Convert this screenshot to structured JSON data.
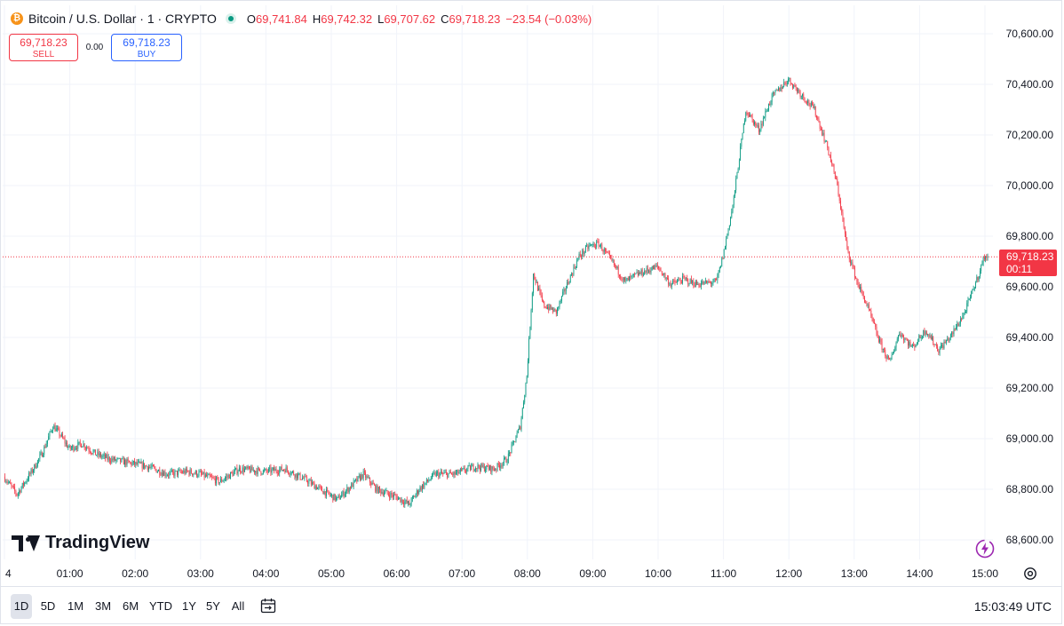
{
  "symbol": {
    "title": "Bitcoin / U.S. Dollar · 1 · CRYPTO",
    "icon": "bitcoin-icon",
    "ohlc": {
      "o_label": "O",
      "o": "69,741.84",
      "h_label": "H",
      "h": "69,742.32",
      "l_label": "L",
      "l": "69,707.62",
      "c_label": "C",
      "c": "69,718.23",
      "change": "−23.54 (−0.03%)"
    }
  },
  "trade": {
    "sell_price": "69,718.23",
    "sell_label": "SELL",
    "spread": "0.00",
    "buy_price": "69,718.23",
    "buy_label": "BUY"
  },
  "brand": "TradingView",
  "price_tag": {
    "price": "69,718.23",
    "countdown": "00:11"
  },
  "range_buttons": [
    "1D",
    "5D",
    "1M",
    "3M",
    "6M",
    "YTD",
    "1Y",
    "5Y",
    "All"
  ],
  "active_range": "1D",
  "clock": "15:03:49 UTC",
  "colors": {
    "up": "#089981",
    "down": "#f23645",
    "grid": "#f0f3fa",
    "last_price": "#f23645"
  },
  "chart_data": {
    "type": "candlestick",
    "y_ticks": [
      "70,600.00",
      "70,400.00",
      "70,200.00",
      "70,000.00",
      "69,800.00",
      "69,600.00",
      "69,400.00",
      "69,200.00",
      "69,000.00",
      "68,800.00",
      "68,600.00"
    ],
    "y_tick_values": [
      70600,
      70400,
      70200,
      70000,
      69800,
      69600,
      69400,
      69200,
      69000,
      68800,
      68600
    ],
    "x_ticks": [
      "4",
      "01:00",
      "02:00",
      "03:00",
      "04:00",
      "05:00",
      "06:00",
      "07:00",
      "08:00",
      "09:00",
      "10:00",
      "11:00",
      "12:00",
      "13:00",
      "14:00",
      "15:00"
    ],
    "x_tick_hours": [
      0,
      1,
      2,
      3,
      4,
      5,
      6,
      7,
      8,
      9,
      10,
      11,
      12,
      13,
      14,
      15
    ],
    "last_price": 69718.23,
    "price_path": [
      [
        0.0,
        68850
      ],
      [
        0.2,
        68780
      ],
      [
        0.45,
        68880
      ],
      [
        0.6,
        68950
      ],
      [
        0.75,
        69050
      ],
      [
        0.85,
        69020
      ],
      [
        1.0,
        68960
      ],
      [
        1.2,
        68980
      ],
      [
        1.4,
        68940
      ],
      [
        1.6,
        68920
      ],
      [
        1.8,
        68910
      ],
      [
        2.0,
        68900
      ],
      [
        2.2,
        68890
      ],
      [
        2.5,
        68860
      ],
      [
        2.8,
        68870
      ],
      [
        3.0,
        68860
      ],
      [
        3.3,
        68830
      ],
      [
        3.6,
        68880
      ],
      [
        4.0,
        68870
      ],
      [
        4.3,
        68880
      ],
      [
        4.6,
        68840
      ],
      [
        4.9,
        68790
      ],
      [
        5.1,
        68760
      ],
      [
        5.3,
        68810
      ],
      [
        5.5,
        68860
      ],
      [
        5.7,
        68800
      ],
      [
        6.0,
        68770
      ],
      [
        6.2,
        68740
      ],
      [
        6.35,
        68800
      ],
      [
        6.6,
        68860
      ],
      [
        6.9,
        68860
      ],
      [
        7.2,
        68890
      ],
      [
        7.5,
        68880
      ],
      [
        7.7,
        68920
      ],
      [
        7.9,
        69050
      ],
      [
        8.0,
        69250
      ],
      [
        8.1,
        69650
      ],
      [
        8.25,
        69530
      ],
      [
        8.45,
        69500
      ],
      [
        8.6,
        69600
      ],
      [
        8.8,
        69720
      ],
      [
        8.95,
        69760
      ],
      [
        9.1,
        69770
      ],
      [
        9.3,
        69700
      ],
      [
        9.5,
        69620
      ],
      [
        9.7,
        69650
      ],
      [
        10.0,
        69680
      ],
      [
        10.2,
        69610
      ],
      [
        10.4,
        69630
      ],
      [
        10.6,
        69610
      ],
      [
        10.9,
        69620
      ],
      [
        11.0,
        69720
      ],
      [
        11.15,
        69920
      ],
      [
        11.35,
        70300
      ],
      [
        11.55,
        70220
      ],
      [
        11.75,
        70350
      ],
      [
        12.0,
        70420
      ],
      [
        12.2,
        70360
      ],
      [
        12.4,
        70300
      ],
      [
        12.6,
        70150
      ],
      [
        12.75,
        70000
      ],
      [
        12.9,
        69750
      ],
      [
        13.05,
        69620
      ],
      [
        13.2,
        69530
      ],
      [
        13.4,
        69380
      ],
      [
        13.55,
        69300
      ],
      [
        13.7,
        69420
      ],
      [
        13.9,
        69360
      ],
      [
        14.1,
        69430
      ],
      [
        14.3,
        69350
      ],
      [
        14.5,
        69410
      ],
      [
        14.7,
        69500
      ],
      [
        14.9,
        69640
      ],
      [
        15.0,
        69720
      ],
      [
        15.05,
        69718
      ]
    ]
  }
}
